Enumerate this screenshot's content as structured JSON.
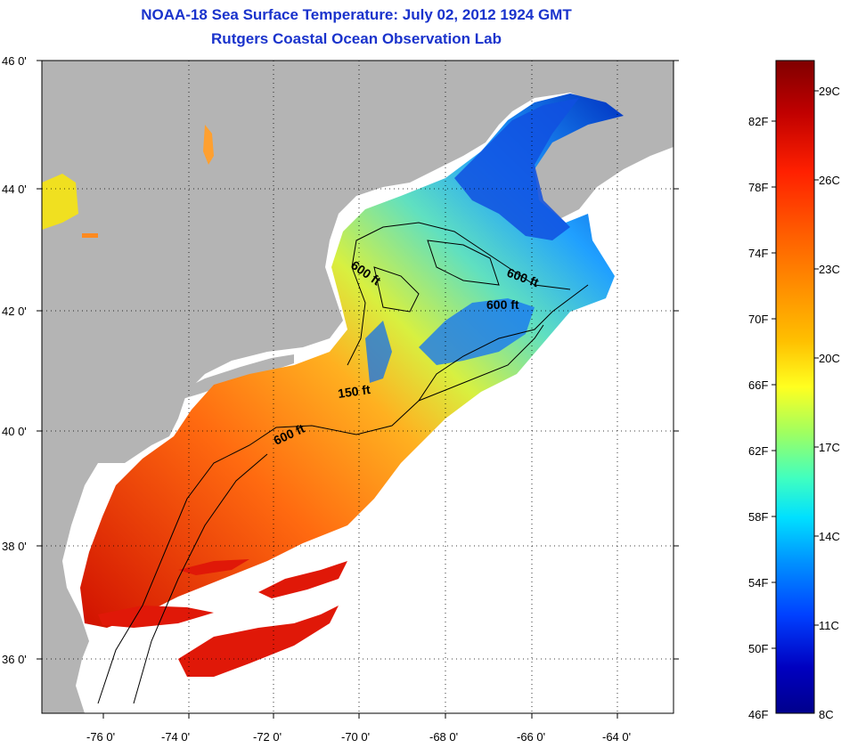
{
  "header": {
    "title": "NOAA-18 Sea Surface Temperature:  July 02, 2012 1924 GMT",
    "subtitle": "Rutgers Coastal Ocean Observation Lab"
  },
  "map": {
    "lat_labels": [
      "46 0'",
      "44 0'",
      "42 0'",
      "40 0'",
      "38 0'",
      "36 0'"
    ],
    "lon_labels": [
      "-76 0'",
      "-74 0'",
      "-72 0'",
      "-70 0'",
      "-68 0'",
      "-66 0'",
      "-64 0'"
    ],
    "contour_labels": [
      "600 ft",
      "600 ft",
      "600 ft",
      "150 ft",
      "600 ft"
    ],
    "colors": {
      "land": "#b4b4b4",
      "cloud": "#ffffff"
    }
  },
  "colorbar": {
    "fahrenheit_labels": [
      "82F",
      "78F",
      "74F",
      "70F",
      "66F",
      "62F",
      "58F",
      "54F",
      "50F",
      "46F"
    ],
    "celsius_labels": [
      "29C",
      "26C",
      "23C",
      "20C",
      "17C",
      "14C",
      "11C",
      "8C"
    ],
    "colormap": [
      "#800000",
      "#c00000",
      "#ff2000",
      "#ff6000",
      "#ff9000",
      "#ffc000",
      "#ffff20",
      "#a0ff60",
      "#40ffc0",
      "#00e0ff",
      "#0090ff",
      "#0040ff",
      "#0000c0",
      "#00008c"
    ]
  }
}
